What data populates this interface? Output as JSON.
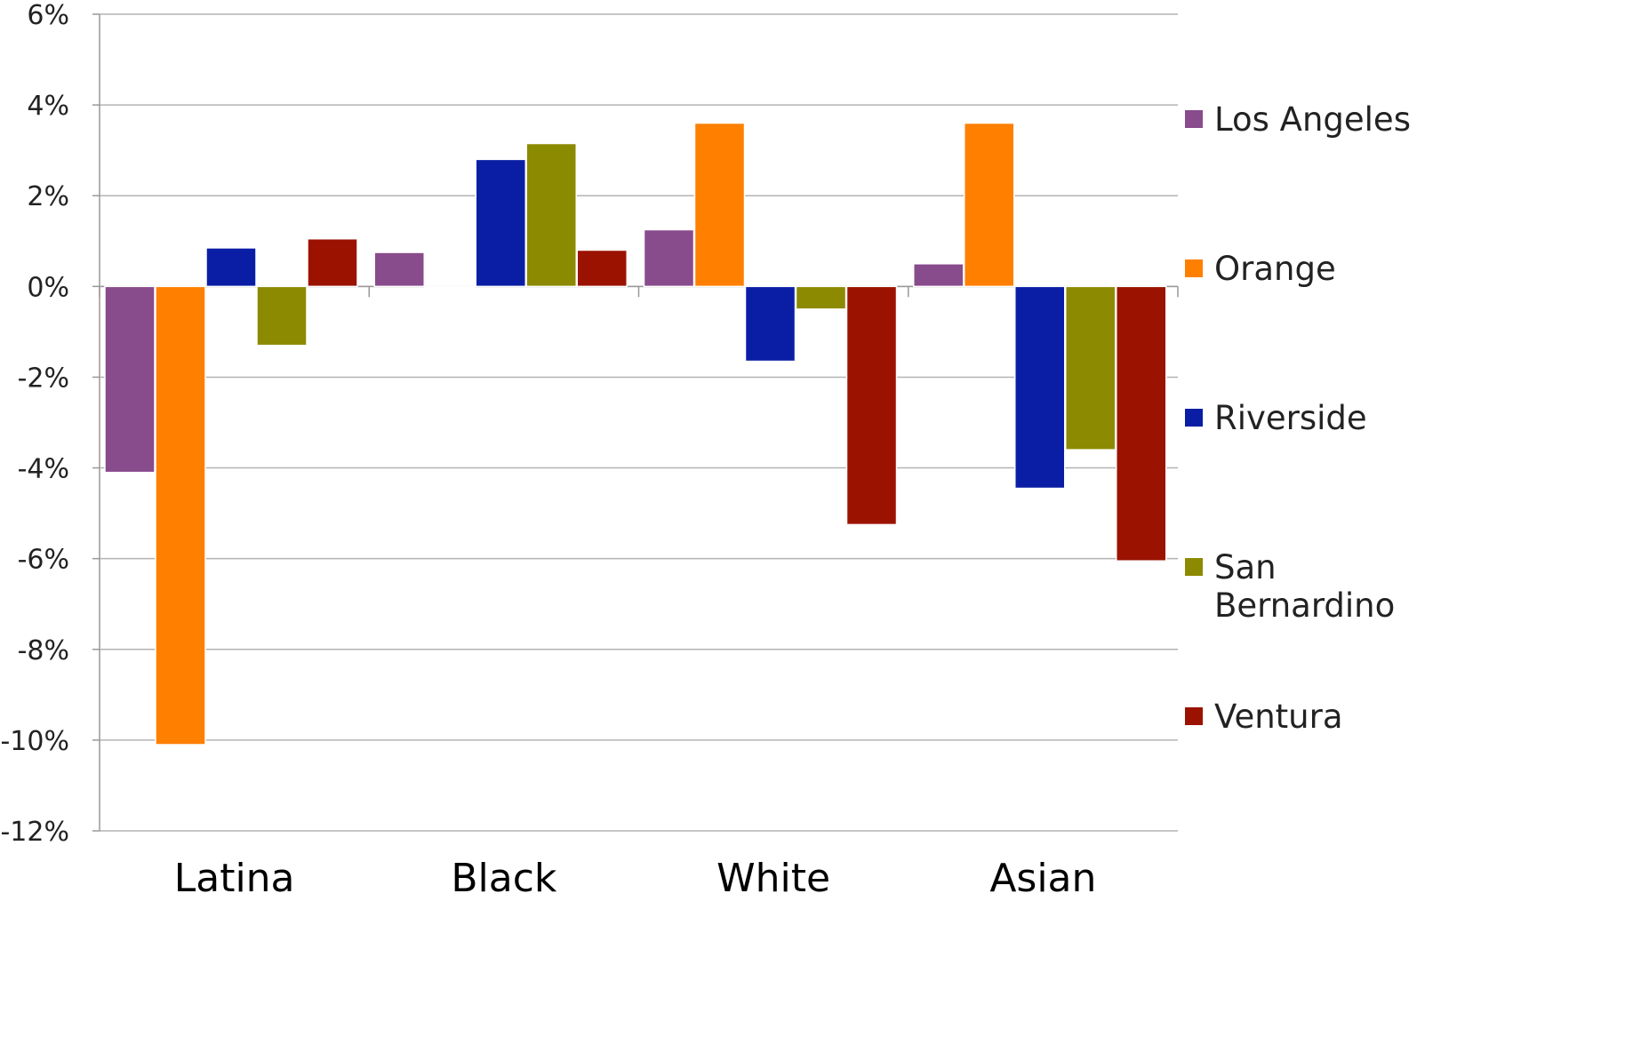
{
  "chart_data": {
    "type": "bar",
    "title": "",
    "xlabel": "",
    "ylabel": "",
    "categories": [
      "Latina",
      "Black",
      "White",
      "Asian"
    ],
    "series": [
      {
        "name": "Los Angeles",
        "color": "#884b8c",
        "values": [
          -4.1,
          0.75,
          1.25,
          0.5
        ]
      },
      {
        "name": "Orange",
        "color": "#ff7f00",
        "values": [
          -10.1,
          0.0,
          3.6,
          3.6
        ]
      },
      {
        "name": "Riverside",
        "color": "#0a1ea5",
        "values": [
          0.85,
          2.8,
          -1.65,
          -4.45
        ]
      },
      {
        "name": "San Bernardino",
        "color": "#8c8a00",
        "values": [
          -1.3,
          3.15,
          -0.5,
          -3.6
        ]
      },
      {
        "name": "Ventura",
        "color": "#9b1200",
        "values": [
          1.05,
          0.8,
          -5.25,
          -6.05
        ]
      }
    ],
    "ylim": [
      -12,
      6
    ],
    "yticks": [
      6,
      4,
      2,
      0,
      -2,
      -4,
      -6,
      -8,
      -10,
      -12
    ],
    "ytick_labels": [
      "6%",
      "4%",
      "2%",
      "0%",
      "-2%",
      "-4%",
      "-6%",
      "-8%",
      "-10%",
      "-12%"
    ],
    "grid": true,
    "legend_position": "right"
  }
}
